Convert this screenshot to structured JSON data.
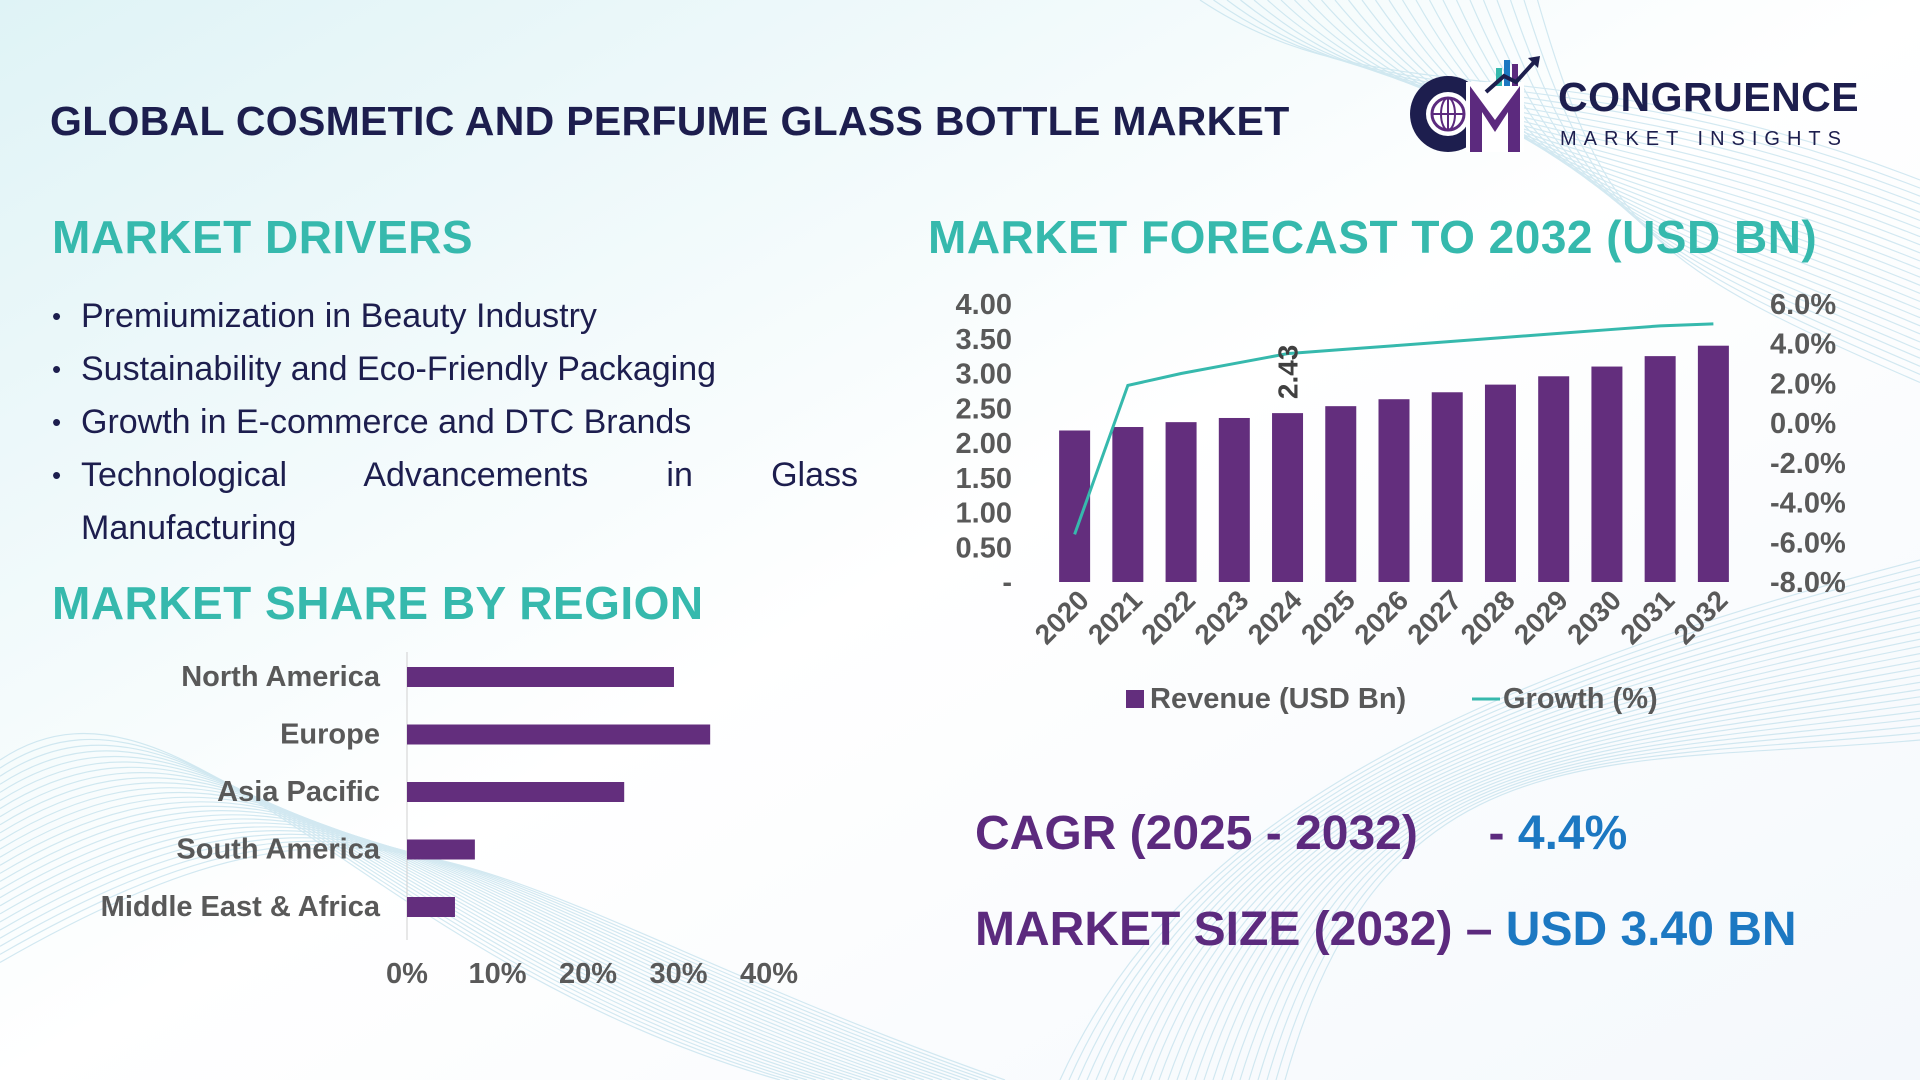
{
  "title": "GLOBAL COSMETIC AND PERFUME GLASS BOTTLE MARKET",
  "logo": {
    "name": "CONGRUENCE",
    "subtitle": "MARKET INSIGHTS"
  },
  "drivers": {
    "heading": "MARKET DRIVERS",
    "items": [
      "Premiumization in Beauty Industry",
      "Sustainability and Eco-Friendly Packaging",
      "Growth in E-commerce and DTC Brands",
      "Technological Advancements in Glass Manufacturing"
    ]
  },
  "colors": {
    "teal": "#36b9ad",
    "purple": "#632e7d",
    "navy": "#1d1e4e",
    "blue": "#1c78c2",
    "axis_text": "#595959"
  },
  "chart_data": [
    {
      "type": "bar",
      "orientation": "horizontal",
      "title": "MARKET SHARE BY REGION",
      "categories": [
        "North America",
        "Europe",
        "Asia Pacific",
        "South America",
        "Middle East & Africa"
      ],
      "values": [
        29.5,
        33.5,
        24.0,
        7.5,
        5.3
      ],
      "xlim": [
        0,
        40
      ],
      "xticks": [
        "0%",
        "10%",
        "20%",
        "30%",
        "40%"
      ],
      "grid": false,
      "color": "#632e7d"
    },
    {
      "type": "bar",
      "title": "MARKET FORECAST TO 2032 (USD BN)",
      "categories": [
        "2020",
        "2021",
        "2022",
        "2023",
        "2024",
        "2025",
        "2026",
        "2027",
        "2028",
        "2029",
        "2030",
        "2031",
        "2032"
      ],
      "series": [
        {
          "name": "Revenue (USD Bn)",
          "type": "bar",
          "axis": "left",
          "color": "#632e7d",
          "values": [
            2.18,
            2.23,
            2.3,
            2.36,
            2.43,
            2.53,
            2.63,
            2.73,
            2.84,
            2.96,
            3.1,
            3.25,
            3.4
          ]
        },
        {
          "name": "Growth (%)",
          "type": "line",
          "axis": "right",
          "color": "#36b9ad",
          "values": [
            -5.6,
            1.9,
            2.5,
            3.0,
            3.5,
            3.7,
            3.9,
            4.1,
            4.3,
            4.5,
            4.7,
            4.9,
            5.0
          ]
        }
      ],
      "data_labels": [
        {
          "category": "2024",
          "text": "2.43"
        }
      ],
      "y_left": {
        "min": 0,
        "max": 4.0,
        "ticks": [
          "-",
          "0.50",
          "1.00",
          "1.50",
          "2.00",
          "2.50",
          "3.00",
          "3.50",
          "4.00"
        ]
      },
      "y_right": {
        "min": -8.0,
        "max": 6.0,
        "ticks": [
          "-8.0%",
          "-6.0%",
          "-4.0%",
          "-2.0%",
          "0.0%",
          "2.0%",
          "4.0%",
          "6.0%"
        ]
      },
      "legend_position": "bottom",
      "grid": false
    }
  ],
  "cagr": {
    "label": "CAGR (2025 - 2032)",
    "sep": "- ",
    "value": "4.4%"
  },
  "market_size": {
    "label": "MARKET SIZE (2032)",
    "sep": " – ",
    "value": "USD 3.40 BN"
  }
}
